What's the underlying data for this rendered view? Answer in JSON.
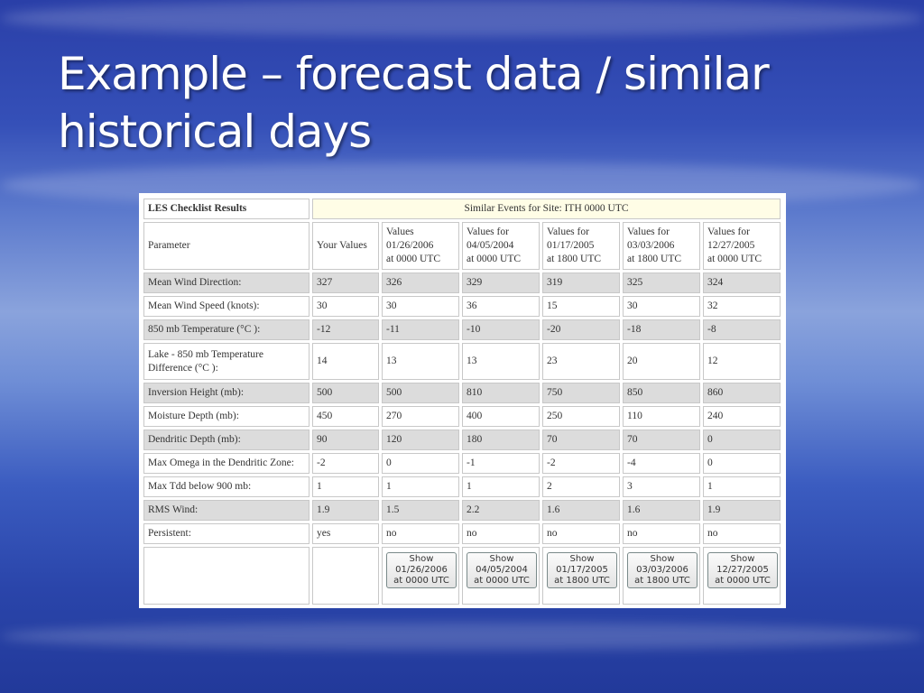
{
  "slide": {
    "title": "Example – forecast data / similar historical days"
  },
  "table": {
    "title": "LES Checklist Results",
    "similar_events": "Similar Events for Site: ITH 0000 UTC",
    "headers": [
      "Parameter",
      "Your Values",
      [
        "Values",
        "01/26/2006",
        "at 0000 UTC"
      ],
      [
        "Values for",
        "04/05/2004",
        "at 0000 UTC"
      ],
      [
        "Values for",
        "01/17/2005",
        "at 1800 UTC"
      ],
      [
        "Values for",
        "03/03/2006",
        "at 1800 UTC"
      ],
      [
        "Values for",
        "12/27/2005",
        "at 0000 UTC"
      ]
    ],
    "rows": [
      {
        "label": "Mean Wind Direction:",
        "values": [
          "327",
          "326",
          "329",
          "319",
          "325",
          "324"
        ]
      },
      {
        "label": "Mean Wind Speed (knots):",
        "values": [
          "30",
          "30",
          "36",
          "15",
          "30",
          "32"
        ]
      },
      {
        "label": "850 mb Temperature (°C ):",
        "values": [
          "-12",
          "-11",
          "-10",
          "-20",
          "-18",
          "-8"
        ]
      },
      {
        "label": "Lake - 850 mb Temperature Difference (°C ):",
        "values": [
          "14",
          "13",
          "13",
          "23",
          "20",
          "12"
        ]
      },
      {
        "label": "Inversion Height (mb):",
        "values": [
          "500",
          "500",
          "810",
          "750",
          "850",
          "860"
        ]
      },
      {
        "label": "Moisture Depth (mb):",
        "values": [
          "450",
          "270",
          "400",
          "250",
          "110",
          "240"
        ]
      },
      {
        "label": "Dendritic Depth (mb):",
        "values": [
          "90",
          "120",
          "180",
          "70",
          "70",
          "0"
        ]
      },
      {
        "label": "Max Omega in the Dendritic Zone:",
        "values": [
          "-2",
          "0",
          "-1",
          "-2",
          "-4",
          "0"
        ]
      },
      {
        "label": "Max Tdd below 900 mb:",
        "values": [
          "1",
          "1",
          "1",
          "2",
          "3",
          "1"
        ]
      },
      {
        "label": "RMS Wind:",
        "values": [
          "1.9",
          "1.5",
          "2.2",
          "1.6",
          "1.6",
          "1.9"
        ]
      },
      {
        "label": "Persistent:",
        "values": [
          "yes",
          "no",
          "no",
          "no",
          "no",
          "no"
        ]
      }
    ],
    "buttons": [
      [
        "Show",
        "01/26/2006",
        "at 0000 UTC"
      ],
      [
        "Show",
        "04/05/2004",
        "at 0000 UTC"
      ],
      [
        "Show",
        "01/17/2005",
        "at 1800 UTC"
      ],
      [
        "Show",
        "03/03/2006",
        "at 1800 UTC"
      ],
      [
        "Show",
        "12/27/2005",
        "at 0000 UTC"
      ]
    ]
  }
}
